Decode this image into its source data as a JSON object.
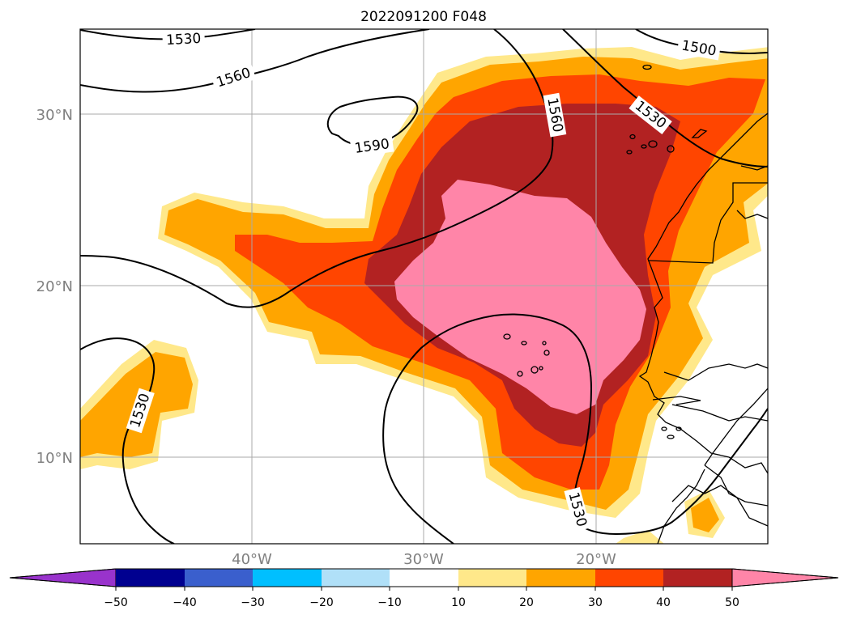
{
  "title": "2022091200 F048",
  "lat_labels": [
    "30°N",
    "20°N",
    "10°N"
  ],
  "lon_labels": [
    "40°W",
    "30°W",
    "20°W"
  ],
  "contour_labels": [
    "1530",
    "1560",
    "1590",
    "1560",
    "1530",
    "1500",
    "1530",
    "1530"
  ],
  "colorbar": {
    "ticks": [
      "−50",
      "−40",
      "−30",
      "−20",
      "−10",
      "10",
      "20",
      "30",
      "40",
      "50"
    ],
    "colors": [
      "#9933cc",
      "#2e2ea6",
      "#000090",
      "#3a5fcd",
      "#00bfff",
      "#b0e0f8",
      "#ffffff",
      "#ffe88a",
      "#ffa500",
      "#ff4500",
      "#b22222",
      "#ff85a8"
    ]
  },
  "colors": {
    "fill_10_20": "#ffe88a",
    "fill_20_30": "#ffa500",
    "fill_30_40": "#ff4500",
    "fill_40_50": "#b22222",
    "fill_50_plus": "#ff85a8",
    "contour": "#000000",
    "grid": "#aaaaaa",
    "tick_label": "#808080"
  }
}
